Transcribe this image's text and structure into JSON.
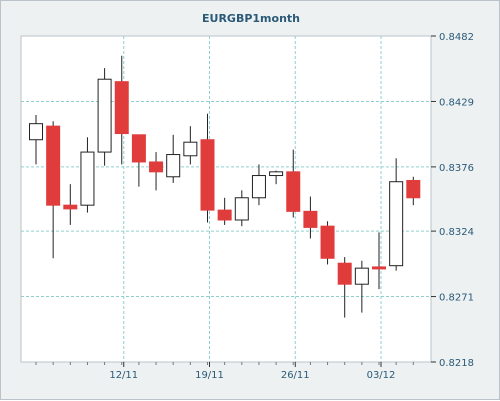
{
  "chart_data": {
    "type": "candlestick",
    "title": "EURGBP1month",
    "y_axis": {
      "position": "right",
      "min": 0.8218,
      "max": 0.8482,
      "ticks": [
        "0.8482",
        "0.8429",
        "0.8376",
        "0.8324",
        "0.8271",
        "0.8218"
      ]
    },
    "x_axis": {
      "ticks": [
        {
          "label": "12/11",
          "index": 5
        },
        {
          "label": "19/11",
          "index": 10
        },
        {
          "label": "26/11",
          "index": 15
        },
        {
          "label": "03/12",
          "index": 20
        }
      ]
    },
    "colors": {
      "up_fill": "#ffffff",
      "down_fill": "#e03c3c",
      "outline": "#222222",
      "grid": "#8fd0cf"
    },
    "grid": true,
    "candles": [
      {
        "o": 0.8398,
        "h": 0.8418,
        "l": 0.8378,
        "c": 0.8411
      },
      {
        "o": 0.8409,
        "h": 0.8413,
        "l": 0.8302,
        "c": 0.8345
      },
      {
        "o": 0.8345,
        "h": 0.8362,
        "l": 0.8329,
        "c": 0.8342
      },
      {
        "o": 0.8345,
        "h": 0.84,
        "l": 0.8339,
        "c": 0.8388
      },
      {
        "o": 0.8388,
        "h": 0.8456,
        "l": 0.8377,
        "c": 0.8447
      },
      {
        "o": 0.8445,
        "h": 0.8466,
        "l": 0.8378,
        "c": 0.8403
      },
      {
        "o": 0.8402,
        "h": 0.8402,
        "l": 0.836,
        "c": 0.838
      },
      {
        "o": 0.838,
        "h": 0.8388,
        "l": 0.8357,
        "c": 0.8372
      },
      {
        "o": 0.8368,
        "h": 0.8402,
        "l": 0.8363,
        "c": 0.8386
      },
      {
        "o": 0.8385,
        "h": 0.8409,
        "l": 0.8378,
        "c": 0.8396
      },
      {
        "o": 0.8398,
        "h": 0.8419,
        "l": 0.8331,
        "c": 0.8341
      },
      {
        "o": 0.8341,
        "h": 0.8351,
        "l": 0.8329,
        "c": 0.8333
      },
      {
        "o": 0.8333,
        "h": 0.8357,
        "l": 0.8328,
        "c": 0.8351
      },
      {
        "o": 0.8351,
        "h": 0.8378,
        "l": 0.8345,
        "c": 0.8369
      },
      {
        "o": 0.8369,
        "h": 0.8373,
        "l": 0.8362,
        "c": 0.8372
      },
      {
        "o": 0.8372,
        "h": 0.839,
        "l": 0.8335,
        "c": 0.834
      },
      {
        "o": 0.834,
        "h": 0.8352,
        "l": 0.8318,
        "c": 0.8327
      },
      {
        "o": 0.8328,
        "h": 0.8332,
        "l": 0.8297,
        "c": 0.8302
      },
      {
        "o": 0.8298,
        "h": 0.8303,
        "l": 0.8254,
        "c": 0.8281
      },
      {
        "o": 0.8281,
        "h": 0.83,
        "l": 0.8258,
        "c": 0.8294
      },
      {
        "o": 0.8295,
        "h": 0.8323,
        "l": 0.8277,
        "c": 0.8294
      },
      {
        "o": 0.8296,
        "h": 0.8383,
        "l": 0.8292,
        "c": 0.8364
      },
      {
        "o": 0.8365,
        "h": 0.8368,
        "l": 0.8345,
        "c": 0.8351
      }
    ]
  }
}
